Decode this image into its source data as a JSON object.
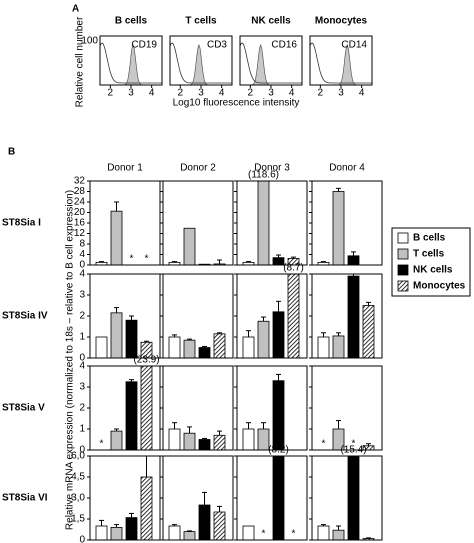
{
  "flow_panel": {
    "label": "A",
    "y_label": "Relative cell number",
    "x_label": "Log10 fluorescence intensity",
    "ytick": 100,
    "xlim": [
      1.5,
      4.5
    ],
    "xticks": [
      2,
      3,
      4
    ],
    "populations": [
      {
        "title": "B cells",
        "marker": "CD19"
      },
      {
        "title": "T cells",
        "marker": "CD3"
      },
      {
        "title": "NK cells",
        "marker": "CD16"
      },
      {
        "title": "Monocytes",
        "marker": "CD14"
      }
    ]
  },
  "chart_data": {
    "type": "bar",
    "panel_label": "B",
    "y_label": "Relative mRNA expression (normalized to 18s – relative to B cell expression)",
    "categories": [
      "Donor 1",
      "Donor 2",
      "Donor 3",
      "Donor 4"
    ],
    "rows": [
      {
        "title": "ST8Sia I",
        "ylim": [
          0,
          32
        ],
        "yticks": [
          0,
          4,
          8,
          12,
          16,
          20,
          24,
          28,
          32
        ]
      },
      {
        "title": "ST8Sia IV",
        "ylim": [
          0,
          4
        ],
        "yticks": [
          0,
          1,
          2,
          3,
          4
        ]
      },
      {
        "title": "ST8Sia V",
        "ylim": [
          0,
          4
        ],
        "yticks": [
          0,
          1,
          2,
          3,
          4
        ]
      },
      {
        "title": "ST8Sia VI",
        "ylim": [
          0,
          6
        ],
        "yticks": [
          0,
          {
            "value": 1.5,
            "label": "1,5"
          },
          {
            "value": 3,
            "label": "3,0"
          },
          {
            "value": 4.5,
            "label": "4,5"
          },
          {
            "value": 6,
            "label": "6,0"
          }
        ]
      }
    ],
    "series": [
      {
        "name": "B cells",
        "color": "#ffffff",
        "values": [
          [
            1,
            1,
            1,
            1
          ],
          [
            1,
            1,
            1,
            1
          ],
          [
            null,
            1,
            1,
            null
          ],
          [
            1,
            1,
            1,
            1
          ]
        ],
        "errors": [
          [
            0.3,
            0.3,
            0.3,
            0.3
          ],
          [
            0,
            0.1,
            0.3,
            0.2
          ],
          [
            null,
            0.3,
            0.3,
            null
          ],
          [
            0.4,
            0.1,
            0,
            0.1
          ]
        ],
        "value_labels": [
          [
            null,
            null,
            null,
            null
          ],
          [
            null,
            null,
            null,
            null
          ],
          [
            "*",
            null,
            null,
            "*"
          ],
          [
            null,
            null,
            null,
            null
          ]
        ]
      },
      {
        "name": "T cells",
        "color": "#c0c0c0",
        "values": [
          [
            20.5,
            14,
            118.6,
            28
          ],
          [
            2.15,
            0.85,
            1.75,
            1.05
          ],
          [
            0.9,
            0.8,
            1,
            1
          ],
          [
            0.9,
            0.6,
            null,
            0.7
          ]
        ],
        "errors": [
          [
            3.5,
            0,
            0,
            1.2
          ],
          [
            0.25,
            0.05,
            0.2,
            0.15
          ],
          [
            0.1,
            0.3,
            0.3,
            0.4
          ],
          [
            0.2,
            0.05,
            null,
            0.3
          ]
        ],
        "value_labels": [
          [
            null,
            null,
            "(118.6)",
            null
          ],
          [
            null,
            null,
            null,
            null
          ],
          [
            null,
            null,
            null,
            null
          ],
          [
            null,
            null,
            "*",
            null
          ]
        ]
      },
      {
        "name": "NK cells",
        "color": "#000000",
        "values": [
          [
            null,
            0.3,
            2.8,
            3.5
          ],
          [
            1.8,
            0.5,
            2.2,
            3.9
          ],
          [
            3.25,
            0.5,
            3.3,
            null
          ],
          [
            1.6,
            2.5,
            8.2,
            15.4
          ]
        ],
        "errors": [
          [
            null,
            0,
            1,
            1.5
          ],
          [
            0.2,
            0.05,
            0.5,
            0.1
          ],
          [
            0.1,
            0.05,
            0.3,
            null
          ],
          [
            0.3,
            0.9,
            0,
            0
          ]
        ],
        "value_labels": [
          [
            "*",
            null,
            null,
            null
          ],
          [
            null,
            null,
            null,
            null
          ],
          [
            null,
            null,
            null,
            "*"
          ],
          [
            null,
            null,
            "(8.2)",
            "(15.4)"
          ]
        ]
      },
      {
        "name": "Monocytes",
        "color": "#000000",
        "pattern": "hatch",
        "values": [
          [
            null,
            0.4,
            2.5,
            null
          ],
          [
            0.75,
            1.15,
            8.7,
            2.5
          ],
          [
            23.9,
            0.7,
            null,
            0.2
          ],
          [
            4.5,
            2,
            null,
            0.1
          ]
        ],
        "errors": [
          [
            null,
            1.5,
            0.5,
            null
          ],
          [
            0.05,
            0.05,
            0,
            0.15
          ],
          [
            0,
            0.2,
            null,
            0.1
          ],
          [
            1.8,
            0.4,
            null,
            0.05
          ]
        ],
        "value_labels": [
          [
            "*",
            null,
            null,
            null
          ],
          [
            null,
            null,
            "(8.7)",
            null
          ],
          [
            "(23.9)",
            null,
            null,
            null
          ],
          [
            null,
            null,
            "*",
            null
          ]
        ]
      }
    ]
  }
}
